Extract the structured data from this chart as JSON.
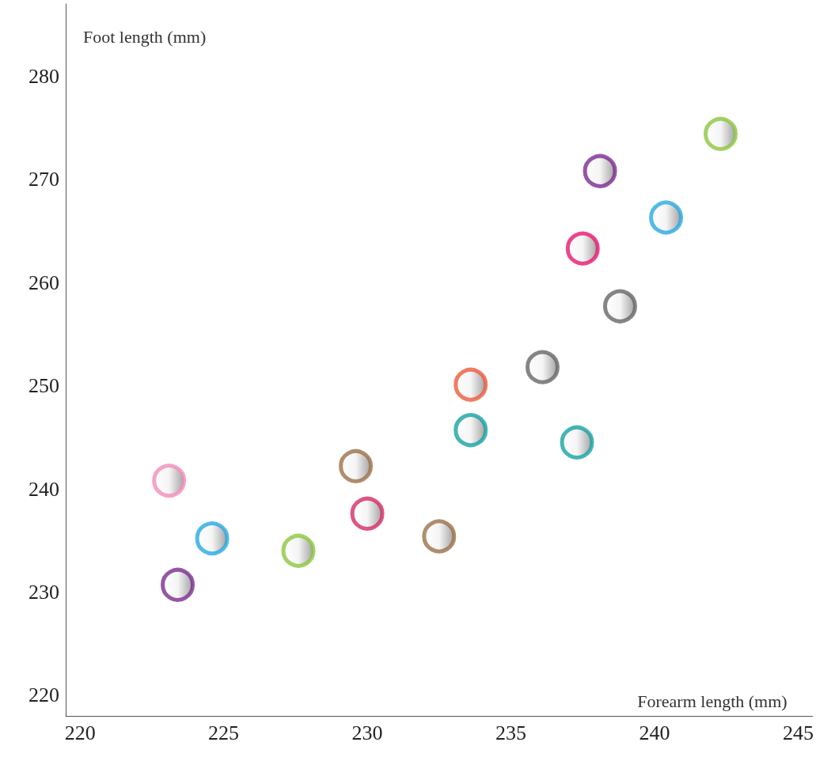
{
  "chart_data": {
    "type": "scatter",
    "xlabel": "Forearm length (mm)",
    "ylabel": "Foot length (mm)",
    "x": [
      242.3,
      238.1,
      240.4,
      237.5,
      238.8,
      236.1,
      233.6,
      233.6,
      237.3,
      229.6,
      223.1,
      230.0,
      232.5,
      224.6,
      227.6,
      223.4
    ],
    "values": [
      274.4,
      270.8,
      266.3,
      263.3,
      257.7,
      251.8,
      250.1,
      245.7,
      244.5,
      242.2,
      240.8,
      237.6,
      235.4,
      235.2,
      234.0,
      230.7
    ],
    "colors": [
      "#8dc63f",
      "#7b2d8e",
      "#29a9e1",
      "#e8186d",
      "#666666",
      "#666666",
      "#ef5a3c",
      "#17a3a3",
      "#17a3a3",
      "#9c7048",
      "#f48cbb",
      "#d62c63",
      "#9c7048",
      "#29a9e1",
      "#8dc63f",
      "#7b2d8e"
    ],
    "xlim": [
      219.5,
      245.5
    ],
    "xticks": [
      220,
      225,
      230,
      235,
      240,
      245
    ],
    "ylim": [
      218,
      287
    ],
    "yticks": [
      220,
      230,
      240,
      250,
      260,
      270,
      280
    ],
    "grid": false,
    "marker": "circle"
  }
}
